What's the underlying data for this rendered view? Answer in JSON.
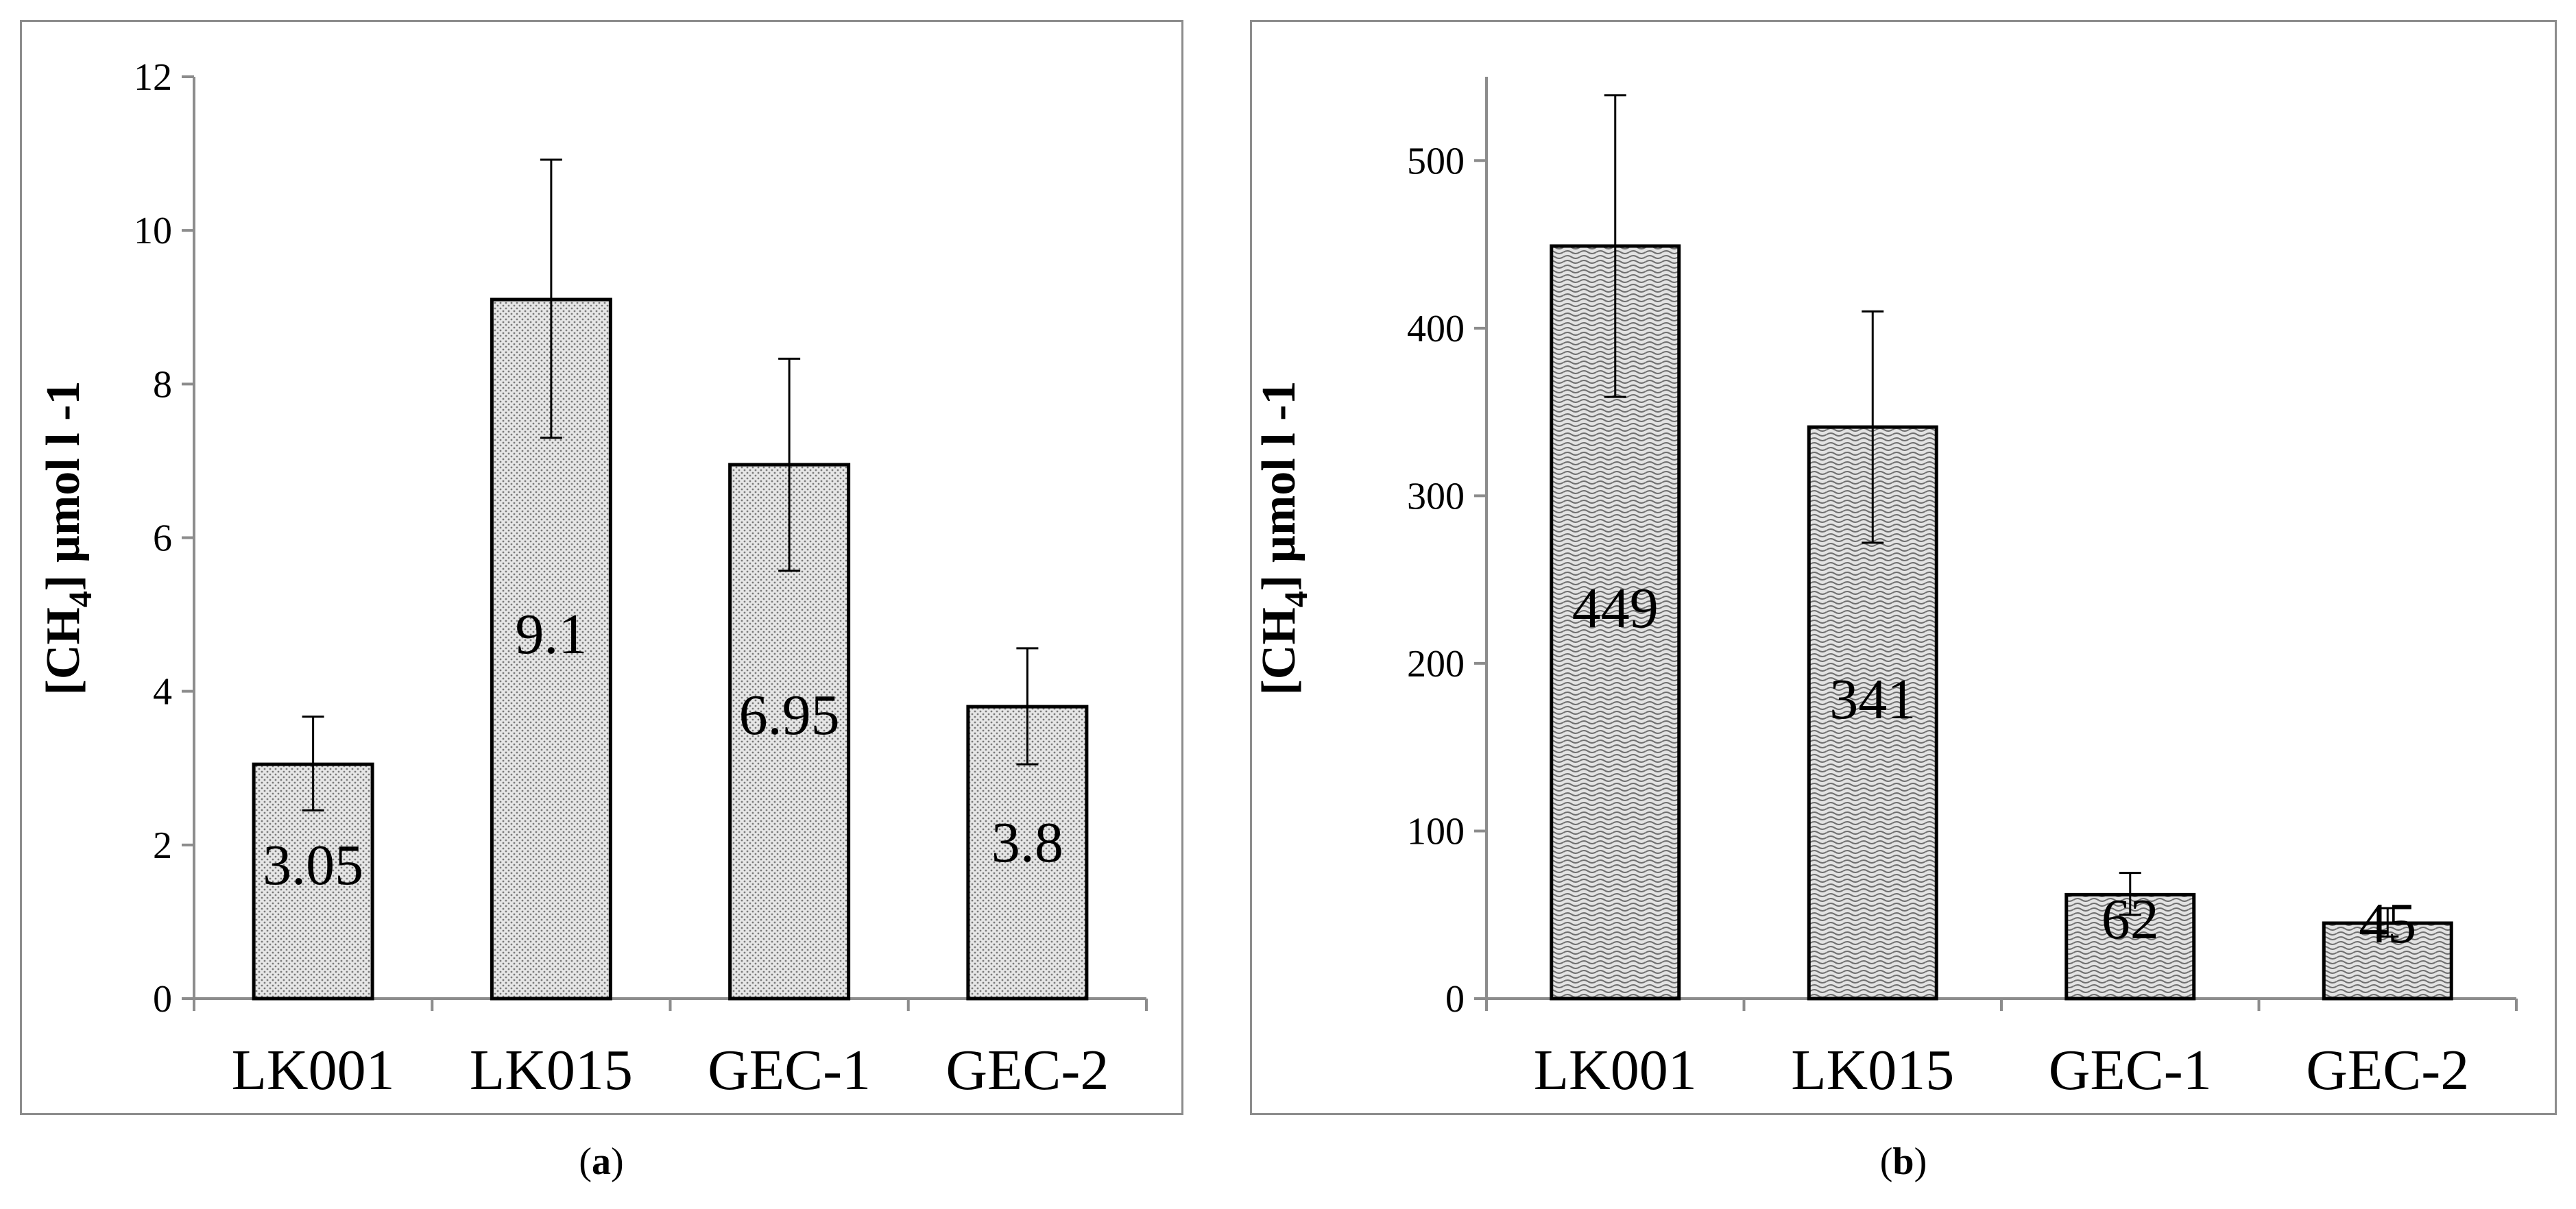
{
  "chart_data": [
    {
      "type": "bar",
      "panel": "a",
      "caption_letter": "a",
      "ylabel": {
        "main": "[CH",
        "sub": "4",
        "rest": "] µmol l -1"
      },
      "categories": [
        "LK001",
        "LK015",
        "GEC-1",
        "GEC-2"
      ],
      "values": [
        3.05,
        9.1,
        6.95,
        3.8
      ],
      "value_labels": [
        "3.05",
        "9.1",
        "6.95",
        "3.8"
      ],
      "error_low": [
        2.45,
        7.3,
        5.57,
        3.05
      ],
      "error_high": [
        3.67,
        10.92,
        8.33,
        4.56
      ],
      "ylim": [
        0,
        12
      ],
      "yticks": [
        0,
        2,
        4,
        6,
        8,
        10,
        12
      ],
      "pattern": "dots",
      "grid": false,
      "legend": false
    },
    {
      "type": "bar",
      "panel": "b",
      "caption_letter": "b",
      "ylabel": {
        "main": "[CH",
        "sub": "4",
        "rest": "] µmol l -1"
      },
      "categories": [
        "LK001",
        "LK015",
        "GEC-1",
        "GEC-2"
      ],
      "values": [
        449,
        341,
        62,
        45
      ],
      "value_labels": [
        "449",
        "341",
        "62",
        "45"
      ],
      "error_low": [
        359,
        272,
        50,
        37
      ],
      "error_high": [
        539,
        410,
        75,
        54
      ],
      "ylim": [
        0,
        550
      ],
      "yticks": [
        0,
        100,
        200,
        300,
        400,
        500
      ],
      "pattern": "waves",
      "grid": false,
      "legend": false
    }
  ],
  "colors": {
    "bar_fill": "#d9d9d9",
    "bar_stroke": "#000000",
    "axis": "#8c8c8c",
    "frame": "#8c8c8c"
  }
}
